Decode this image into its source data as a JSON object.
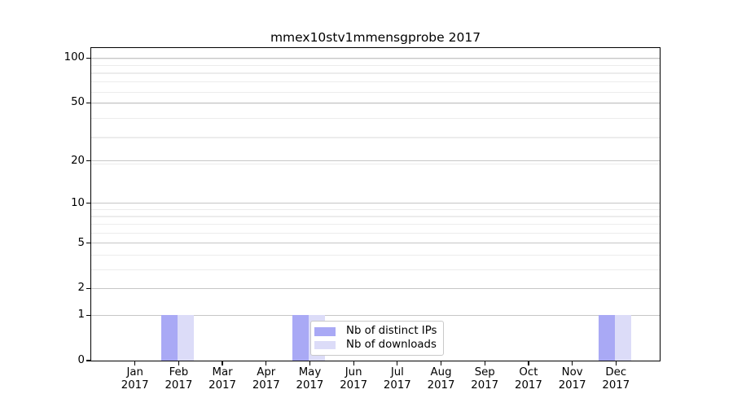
{
  "chart_data": {
    "type": "bar",
    "title": "mmex10stv1mmensgprobe 2017",
    "categories": [
      "Jan",
      "Feb",
      "Mar",
      "Apr",
      "May",
      "Jun",
      "Jul",
      "Aug",
      "Sep",
      "Oct",
      "Nov",
      "Dec"
    ],
    "category_year": "2017",
    "series": [
      {
        "name": "Nb of distinct IPs",
        "color": "#a9a9f5",
        "values": [
          0,
          1,
          0,
          0,
          1,
          0,
          0,
          0,
          0,
          0,
          0,
          1
        ]
      },
      {
        "name": "Nb of downloads",
        "color": "#dcdcf8",
        "values": [
          0,
          1,
          0,
          0,
          1,
          0,
          0,
          0,
          0,
          0,
          0,
          1
        ]
      }
    ],
    "y_axis": {
      "scale": "log1p",
      "tick_values": [
        0,
        1,
        2,
        5,
        10,
        20,
        50,
        100
      ],
      "minor_grid_values": [
        3,
        4,
        6,
        7,
        8,
        9,
        19,
        29,
        39,
        49,
        59,
        69,
        79,
        89,
        99
      ],
      "max": 116.5
    },
    "xlabel": "",
    "ylabel": "",
    "grid": true,
    "legend": {
      "location": "lower center"
    }
  },
  "colors": {
    "bar_distinct_ips": "#a9a9f5",
    "bar_downloads": "#dcdcf8",
    "major_grid": "#c6c6c6",
    "minor_grid": "#ececec",
    "spine": "#000000",
    "legend_border": "#c9c9c9",
    "text": "#000000"
  }
}
